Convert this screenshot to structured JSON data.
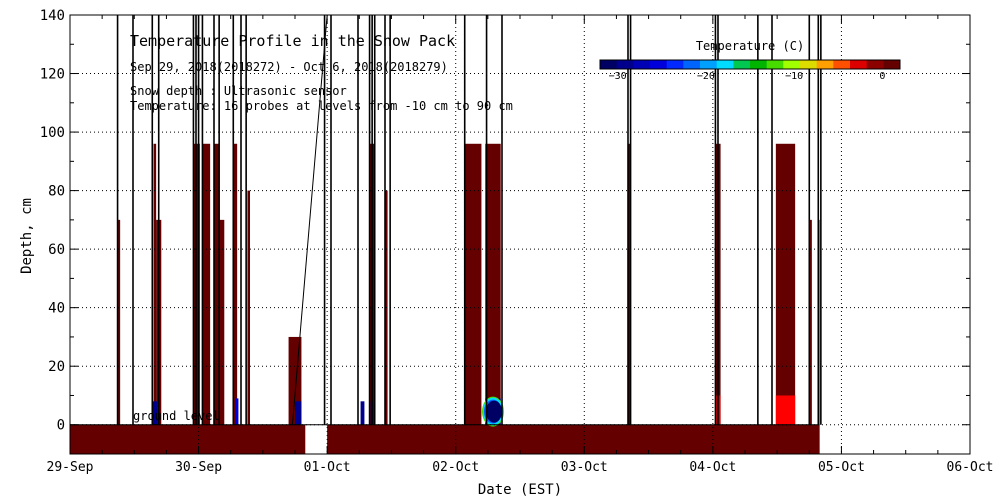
{
  "chart_data": {
    "type": "heatmap",
    "title": "Temperature Profile in the Snow Pack",
    "subtitle": "Sep 29, 2018(2018272) - Oct  6, 2018(2018279)",
    "notes": [
      "Snow depth : Ultrasonic sensor",
      "Temperature: 16 probes at levels from -10 cm to 90 cm"
    ],
    "xlabel": "Date (EST)",
    "ylabel": "Depth, cm",
    "x_ticks": [
      "29-Sep",
      "30-Sep",
      "01-Oct",
      "02-Oct",
      "03-Oct",
      "04-Oct",
      "05-Oct",
      "06-Oct"
    ],
    "x_range_days": [
      0,
      7
    ],
    "ylim": [
      -10,
      140
    ],
    "y_ticks": [
      0,
      20,
      40,
      60,
      80,
      100,
      120,
      140
    ],
    "grid": true,
    "annotation": "ground level",
    "colorbar": {
      "title": "Temperature (C)",
      "ticks": [
        -30,
        -20,
        -10,
        0
      ],
      "range": [
        -32,
        2
      ],
      "colors": [
        "#000064",
        "#00008c",
        "#0000b4",
        "#0000dc",
        "#0028ff",
        "#0064ff",
        "#00a0ff",
        "#00dcff",
        "#00c850",
        "#00b400",
        "#46dc00",
        "#a0ff00",
        "#dcdc00",
        "#ffa000",
        "#ff5000",
        "#dc0000",
        "#8c0000",
        "#640000"
      ]
    },
    "ground_band": {
      "depth_range": [
        -10,
        0
      ],
      "color": "#640000",
      "segments_days": [
        [
          0,
          1.83
        ],
        [
          2.0,
          5.83
        ]
      ]
    },
    "blocks": [
      {
        "x_days": [
          0.37,
          0.39
        ],
        "depth": [
          -10,
          70
        ],
        "color": "#640000"
      },
      {
        "x_days": [
          0.65,
          0.67
        ],
        "depth": [
          -10,
          96
        ],
        "color": "#640000"
      },
      {
        "x_days": [
          0.67,
          0.71
        ],
        "depth": [
          -10,
          70
        ],
        "color": "#640000"
      },
      {
        "x_days": [
          0.64,
          0.68
        ],
        "depth": [
          0,
          8
        ],
        "color": "#00008c"
      },
      {
        "x_days": [
          0.96,
          1.01
        ],
        "depth": [
          -10,
          96
        ],
        "color": "#640000"
      },
      {
        "x_days": [
          1.03,
          1.09
        ],
        "depth": [
          -10,
          96
        ],
        "color": "#640000"
      },
      {
        "x_days": [
          1.12,
          1.16
        ],
        "depth": [
          -10,
          96
        ],
        "color": "#640000"
      },
      {
        "x_days": [
          1.16,
          1.2
        ],
        "depth": [
          -10,
          70
        ],
        "color": "#640000"
      },
      {
        "x_days": [
          1.27,
          1.3
        ],
        "depth": [
          -10,
          96
        ],
        "color": "#640000"
      },
      {
        "x_days": [
          1.29,
          1.31
        ],
        "depth": [
          0,
          9
        ],
        "color": "#0000dc"
      },
      {
        "x_days": [
          1.38,
          1.4
        ],
        "depth": [
          -10,
          80
        ],
        "color": "#640000"
      },
      {
        "x_days": [
          1.7,
          1.8
        ],
        "depth": [
          -10,
          30
        ],
        "color": "#640000"
      },
      {
        "x_days": [
          1.75,
          1.8
        ],
        "depth": [
          0,
          8
        ],
        "color": "#00008c"
      },
      {
        "x_days": [
          2.26,
          2.29
        ],
        "depth": [
          0,
          8
        ],
        "color": "#00008c"
      },
      {
        "x_days": [
          2.33,
          2.37
        ],
        "depth": [
          -10,
          96
        ],
        "color": "#640000"
      },
      {
        "x_days": [
          2.34,
          2.37
        ],
        "depth": [
          0,
          8
        ],
        "color": "#0000dc"
      },
      {
        "x_days": [
          2.45,
          2.47
        ],
        "depth": [
          -10,
          80
        ],
        "color": "#640000"
      },
      {
        "x_days": [
          3.07,
          3.2
        ],
        "depth": [
          -10,
          96
        ],
        "color": "#640000"
      },
      {
        "x_days": [
          3.23,
          3.35
        ],
        "depth": [
          -10,
          96
        ],
        "color": "#640000"
      },
      {
        "x_days": [
          3.23,
          3.35
        ],
        "depth": [
          0,
          9
        ],
        "color": "#00008c"
      },
      {
        "x_days": [
          4.34,
          4.36
        ],
        "depth": [
          -10,
          96
        ],
        "color": "#640000"
      },
      {
        "x_days": [
          5.02,
          5.06
        ],
        "depth": [
          -10,
          96
        ],
        "color": "#640000"
      },
      {
        "x_days": [
          5.02,
          5.06
        ],
        "depth": [
          0,
          10
        ],
        "color": "#dc0000"
      },
      {
        "x_days": [
          5.49,
          5.64
        ],
        "depth": [
          -10,
          96
        ],
        "color": "#640000"
      },
      {
        "x_days": [
          5.49,
          5.64
        ],
        "depth": [
          0,
          10
        ],
        "color": "#ff0000"
      },
      {
        "x_days": [
          5.75,
          5.77
        ],
        "depth": [
          -10,
          70
        ],
        "color": "#640000"
      },
      {
        "x_days": [
          5.82,
          5.83
        ],
        "depth": [
          -10,
          70
        ],
        "color": "#640000"
      }
    ],
    "blob": {
      "x_days": 3.29,
      "depth": 4.5,
      "inner_color": "#000064",
      "mid_color": "#0064ff",
      "edge_color": "#00dcff",
      "rim_color": "#46dc00"
    },
    "snow_depth_spikes_days": [
      0.37,
      0.49,
      0.64,
      0.69,
      0.96,
      0.98,
      1.0,
      1.03,
      1.12,
      1.16,
      1.27,
      1.33,
      1.37,
      1.98,
      2.03,
      2.24,
      2.33,
      2.35,
      2.37,
      2.45,
      2.49,
      3.07,
      3.24,
      3.36,
      4.34,
      4.36,
      5.02,
      5.04,
      5.35,
      5.46,
      5.75,
      5.82,
      5.84
    ],
    "spike_peak_cm": 140,
    "ramp": {
      "x_days": [
        1.73,
        2.0
      ],
      "depth": [
        0,
        140
      ]
    }
  }
}
